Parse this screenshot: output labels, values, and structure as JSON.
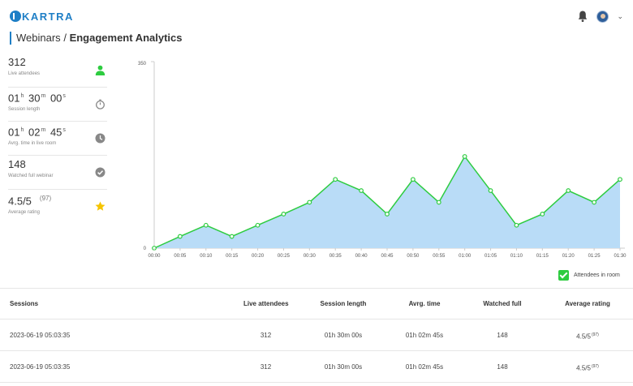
{
  "app": {
    "logo_text": "KARTRA"
  },
  "breadcrumb": {
    "parent": "Webinars",
    "separator": "/",
    "current": "Engagement Analytics"
  },
  "stats": [
    {
      "value_html": "312",
      "label": "Live attendees",
      "icon": "person-icon",
      "color": "#2ecc40"
    },
    {
      "h": "01",
      "m": "30",
      "s": "00",
      "label": "Session length",
      "icon": "stopwatch-icon",
      "color": "#888888"
    },
    {
      "h": "01",
      "m": "02",
      "s": "45",
      "label": "Avrg. time in live room",
      "icon": "clock-icon",
      "color": "#888888"
    },
    {
      "value_html": "148",
      "label": "Watched full webinar",
      "icon": "check-circle-icon",
      "color": "#888888"
    },
    {
      "value_html": "4.5/5",
      "count": "(97)",
      "label": "Average rating",
      "icon": "star-icon",
      "color": "#f5c400"
    }
  ],
  "units": {
    "h": "h",
    "m": "m",
    "s": "s"
  },
  "chart_data": {
    "type": "area",
    "y_tick_top": "350",
    "y_tick_bottom": "0",
    "ylim": [
      0,
      350
    ],
    "categories": [
      "00:00",
      "00:05",
      "00:10",
      "00:15",
      "00:20",
      "00:25",
      "00:30",
      "00:35",
      "00:40",
      "00:45",
      "00:50",
      "00:55",
      "01:00",
      "01:05",
      "01:10",
      "01:15",
      "01:20",
      "01:25",
      "01:30"
    ],
    "series": [
      {
        "name": "Attendees in room",
        "values": [
          0,
          22,
          43,
          22,
          43,
          64,
          86,
          129,
          108,
          64,
          129,
          86,
          172,
          108,
          43,
          64,
          108,
          86,
          129
        ]
      }
    ],
    "fill_color": "#b9dcf7",
    "line_color": "#2ecc40",
    "legend": "bottom-right"
  },
  "legend": {
    "label": "Attendees in room"
  },
  "table": {
    "headers": [
      "Sessions",
      "Live attendees",
      "Session length",
      "Avrg. time",
      "Watched full",
      "Average rating"
    ],
    "rows": [
      [
        "2023-06-19 05:03:35",
        "312",
        "01h 30m 00s",
        "01h 02m 45s",
        "148",
        "4.5/5",
        "(97)"
      ],
      [
        "2023-06-19 05:03:35",
        "312",
        "01h 30m 00s",
        "01h 02m 45s",
        "148",
        "4.5/5",
        "(97)"
      ]
    ]
  }
}
